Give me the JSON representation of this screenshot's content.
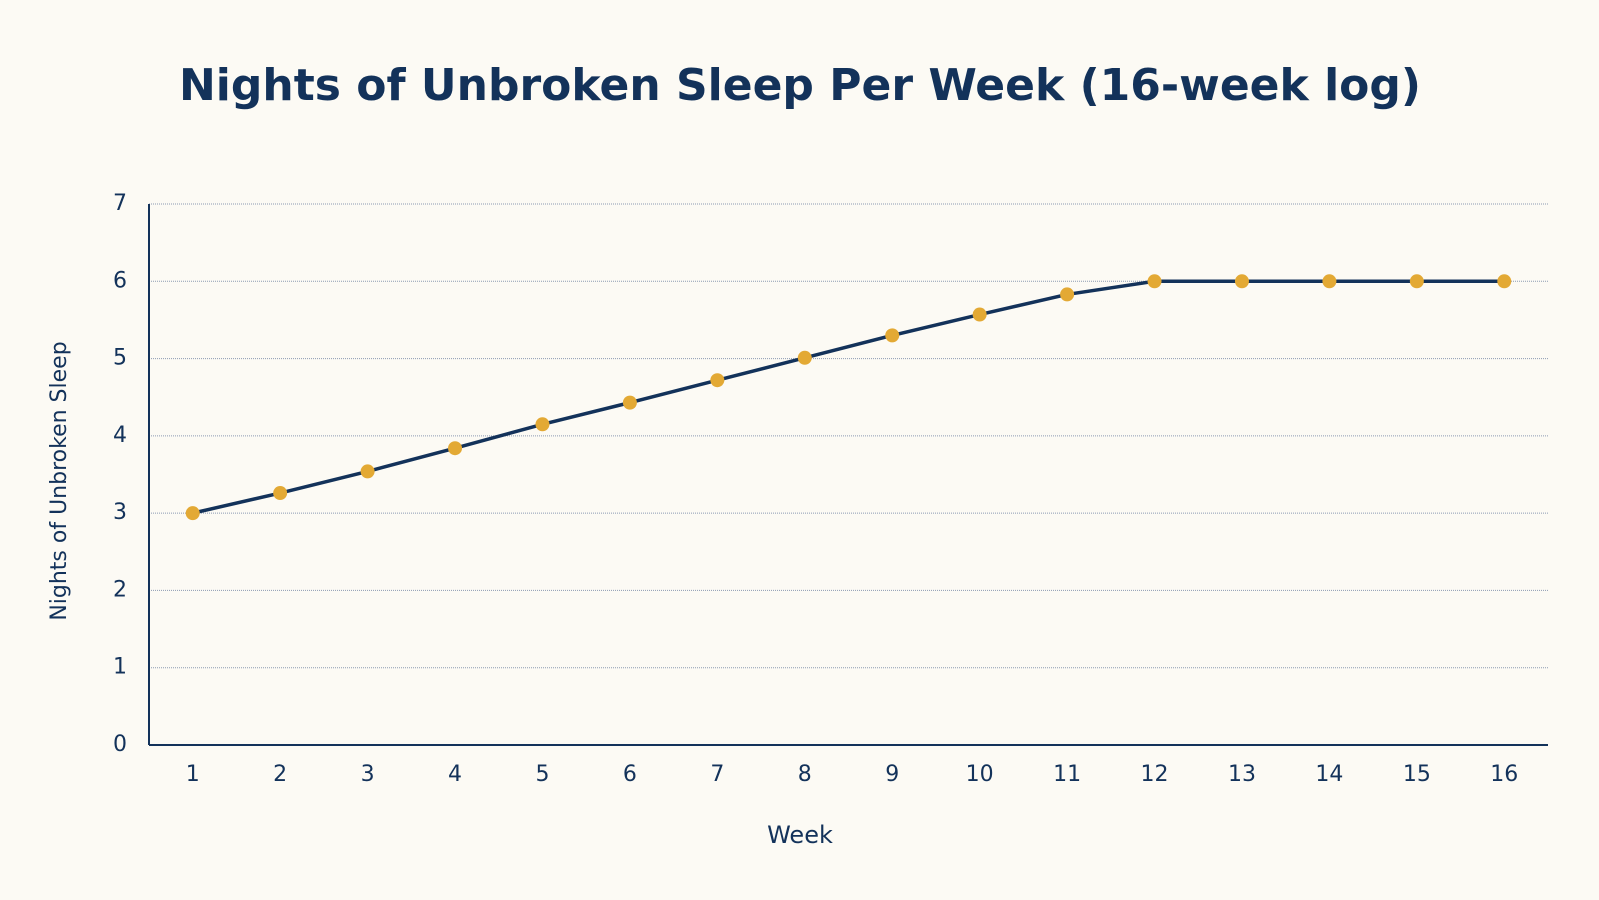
{
  "chart_data": {
    "type": "line",
    "title": "Nights of Unbroken Sleep Per Week (16-week log)",
    "x_label": "Week",
    "y_label": "Nights of Unbroken Sleep",
    "x": [
      1,
      2,
      3,
      4,
      5,
      6,
      7,
      8,
      9,
      10,
      11,
      12,
      13,
      14,
      15,
      16
    ],
    "values": [
      3,
      3.26,
      3.54,
      3.84,
      4.15,
      4.43,
      4.72,
      5.01,
      5.3,
      5.57,
      5.83,
      6,
      6,
      6,
      6,
      6
    ],
    "color": "#13325a",
    "marker_color": "#e3a934",
    "xlim": [
      0.5,
      16.5
    ],
    "xticks": [
      1,
      2,
      3,
      4,
      5,
      6,
      7,
      8,
      9,
      10,
      11,
      12,
      13,
      14,
      15,
      16
    ],
    "ylim": [
      0,
      7
    ],
    "yticks": [
      0,
      1,
      2,
      3,
      4,
      5,
      6,
      7
    ],
    "grid": true
  }
}
